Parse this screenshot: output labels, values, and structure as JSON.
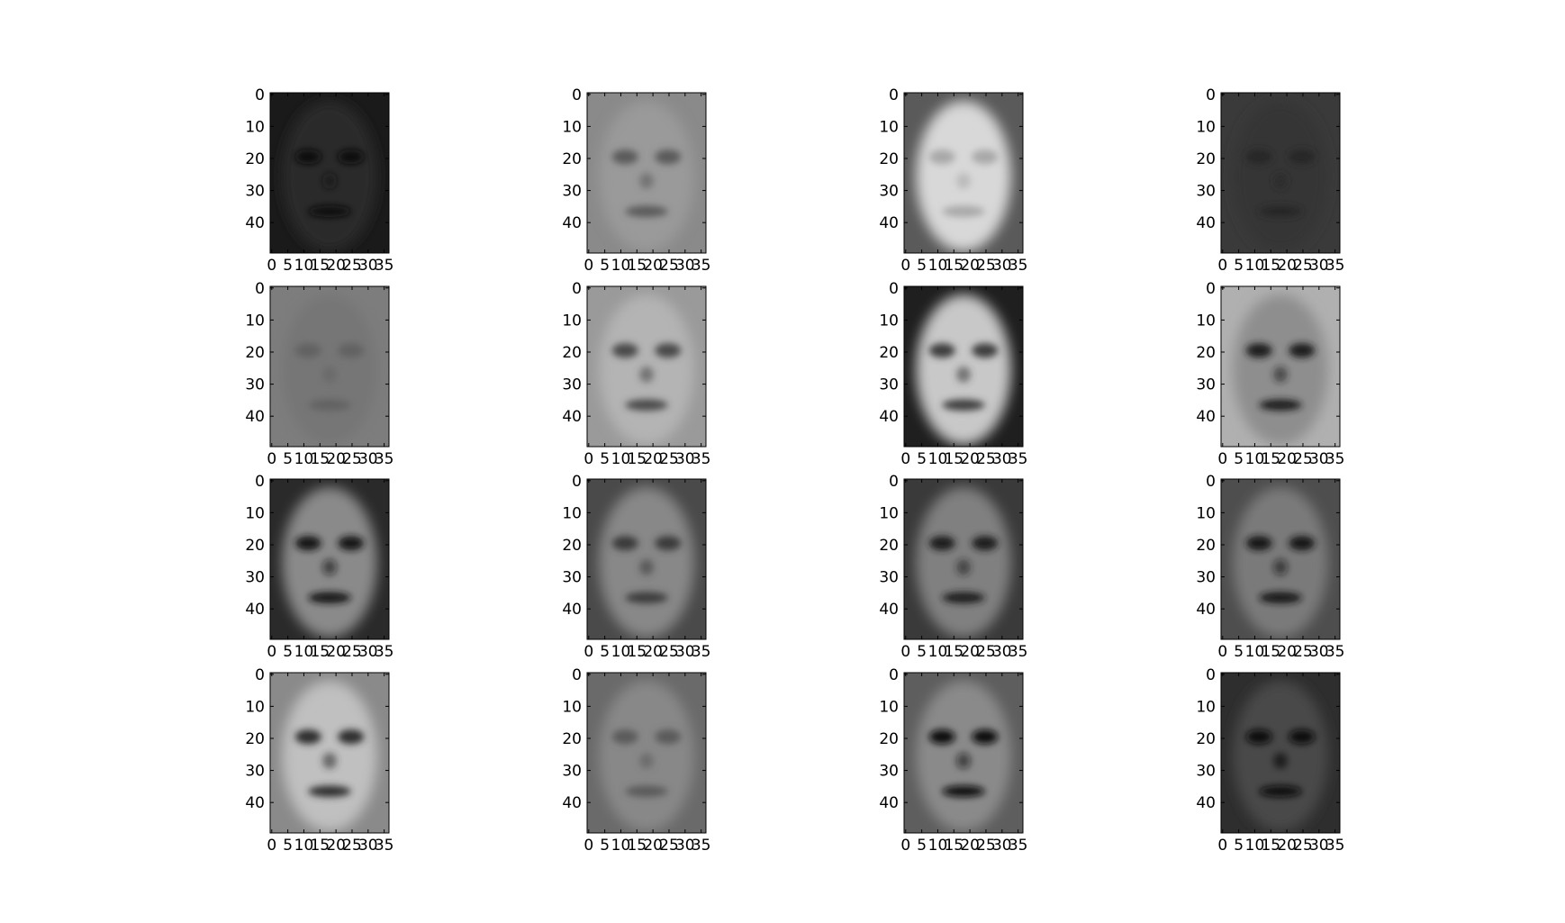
{
  "chart_data": {
    "type": "heatmap",
    "layout": {
      "rows": 4,
      "cols": 4
    },
    "colormap": "gray",
    "x_ticks": [
      "0",
      "5",
      "10",
      "15",
      "20",
      "25",
      "30",
      "35"
    ],
    "y_ticks": [
      "0",
      "10",
      "20",
      "30",
      "40"
    ],
    "xlim": [
      0,
      37
    ],
    "ylim": [
      50,
      0
    ],
    "panels": [
      {
        "index": 1,
        "overall_tone": "dark",
        "bg": "#1a1a1a",
        "face": "#2b2b2b",
        "features": "#0e0e0e"
      },
      {
        "index": 2,
        "overall_tone": "mixed",
        "bg": "#8a8a8a",
        "face": "#9a9a9a",
        "features": "#5a5a5a"
      },
      {
        "index": 3,
        "overall_tone": "light",
        "bg": "#5a5a5a",
        "face": "#d8d8d8",
        "features": "#a8a8a8"
      },
      {
        "index": 4,
        "overall_tone": "dark",
        "bg": "#3a3a3a",
        "face": "#353535",
        "features": "#262626"
      },
      {
        "index": 5,
        "overall_tone": "medium",
        "bg": "#7d7d7d",
        "face": "#767676",
        "features": "#626262"
      },
      {
        "index": 6,
        "overall_tone": "medium",
        "bg": "#9a9a9a",
        "face": "#b4b4b4",
        "features": "#4a4a4a"
      },
      {
        "index": 7,
        "overall_tone": "light",
        "bg": "#1f1f1f",
        "face": "#c8c8c8",
        "features": "#3c3c3c"
      },
      {
        "index": 8,
        "overall_tone": "mixed",
        "bg": "#b0b0b0",
        "face": "#8e8e8e",
        "features": "#1c1c1c"
      },
      {
        "index": 9,
        "overall_tone": "mixed",
        "bg": "#2a2a2a",
        "face": "#8a8a8a",
        "features": "#141414"
      },
      {
        "index": 10,
        "overall_tone": "medium",
        "bg": "#4a4a4a",
        "face": "#888888",
        "features": "#3a3a3a"
      },
      {
        "index": 11,
        "overall_tone": "medium",
        "bg": "#3a3a3a",
        "face": "#808080",
        "features": "#1e1e1e"
      },
      {
        "index": 12,
        "overall_tone": "medium",
        "bg": "#4e4e4e",
        "face": "#7a7a7a",
        "features": "#161616"
      },
      {
        "index": 13,
        "overall_tone": "light",
        "bg": "#8a8a8a",
        "face": "#c0c0c0",
        "features": "#2e2e2e"
      },
      {
        "index": 14,
        "overall_tone": "medium",
        "bg": "#6a6a6a",
        "face": "#888888",
        "features": "#5a5a5a"
      },
      {
        "index": 15,
        "overall_tone": "mixed",
        "bg": "#5e5e5e",
        "face": "#8a8a8a",
        "features": "#0c0c0c"
      },
      {
        "index": 16,
        "overall_tone": "dark",
        "bg": "#2e2e2e",
        "face": "#4a4a4a",
        "features": "#0a0a0a"
      }
    ]
  }
}
